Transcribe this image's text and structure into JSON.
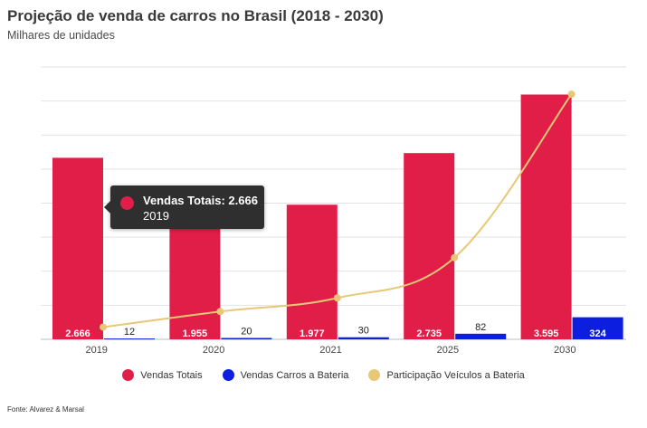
{
  "title": "Projeção de venda de carros no Brasil (2018 - 2030)",
  "subtitle": "Milhares de unidades",
  "source": "Fonte: Alvarez & Marsal",
  "colors": {
    "total": "#e01e48",
    "battery": "#0c1fe0",
    "share": "#e8c776",
    "grid": "#e2e2e2",
    "axis": "#bdbdbd"
  },
  "chart_data": {
    "type": "bar",
    "categories": [
      "2019",
      "2020",
      "2021",
      "2025",
      "2030"
    ],
    "series": [
      {
        "name": "Vendas Totais",
        "type": "bar",
        "values": [
          2666,
          1955,
          1977,
          2735,
          3595
        ],
        "labels": [
          "2.666",
          "1.955",
          "1.977",
          "2.735",
          "3.595"
        ]
      },
      {
        "name": "Vendas Carros a Bateria",
        "type": "bar",
        "values": [
          12,
          20,
          30,
          82,
          324
        ],
        "labels": [
          "12",
          "20",
          "30",
          "82",
          "324"
        ]
      },
      {
        "name": "Participação Veículos a Bateria",
        "type": "line",
        "values": [
          0.45,
          1.02,
          1.52,
          3.0,
          9.0
        ]
      }
    ],
    "ylim": [
      0,
      4000
    ],
    "y2lim": [
      0,
      10
    ],
    "grid": true,
    "legend_position": "bottom"
  },
  "tooltip": {
    "title": "Vendas Totais: 2.666",
    "subtitle": "2019"
  }
}
